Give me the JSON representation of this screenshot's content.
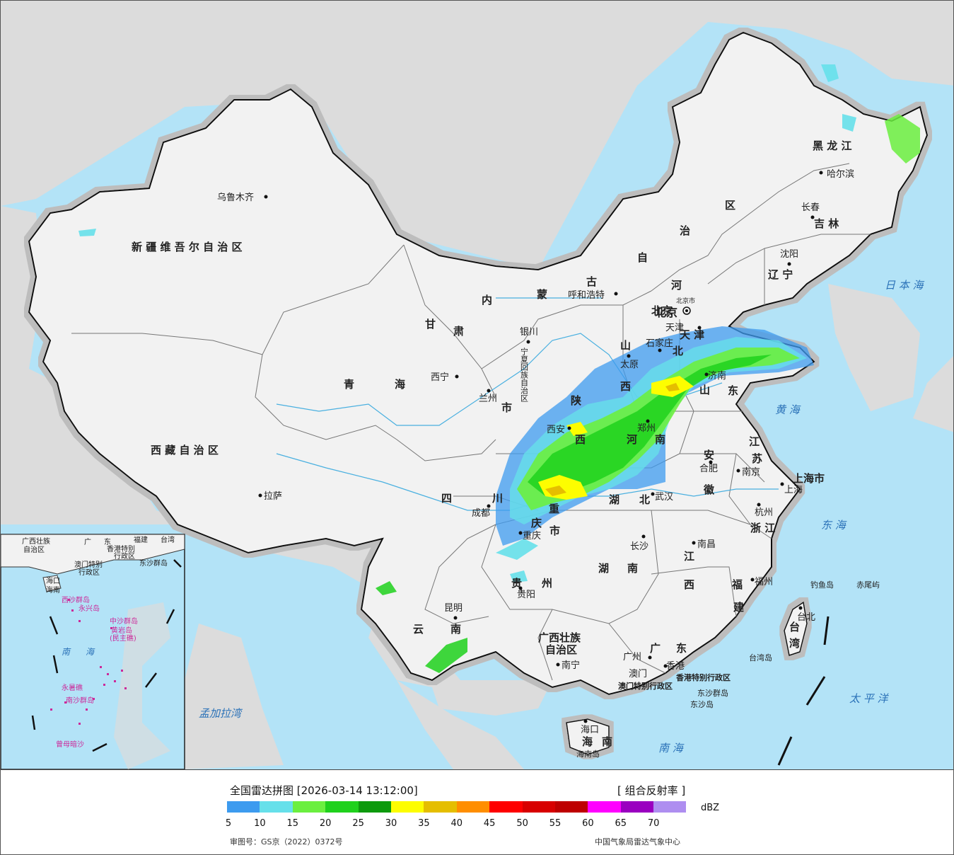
{
  "map": {
    "provinces": [
      "新 疆 维 吾 尔 自 治 区",
      "西 藏 自 治 区",
      "青",
      "海",
      "甘",
      "肃",
      "内",
      "蒙",
      "古",
      "自",
      "治",
      "区",
      "黑 龙 江",
      "吉 林",
      "辽 宁",
      "河",
      "北",
      "山",
      "西",
      "陕",
      "西",
      "河",
      "南",
      "山",
      "东",
      "江",
      "苏",
      "安",
      "徽",
      "浙 江",
      "湖",
      "北",
      "湖",
      "南",
      "江",
      "西",
      "福",
      "建",
      "四",
      "川",
      "重",
      "庆",
      "市",
      "贵",
      "州",
      "云",
      "南",
      "广西壮族",
      "自治区",
      "广",
      "东",
      "海",
      "南",
      "台",
      "湾",
      "上海市",
      "天",
      "津",
      "北京",
      "宁夏回族自治区",
      "市"
    ],
    "cities": [
      "乌鲁木齐",
      "拉萨",
      "西宁",
      "兰州",
      "银川",
      "呼和浩特",
      "北京",
      "天津",
      "石家庄",
      "太原",
      "济南",
      "郑州",
      "西安",
      "成都",
      "重庆",
      "贵阳",
      "昆明",
      "南宁",
      "广州",
      "香港",
      "澳门",
      "长沙",
      "武汉",
      "南昌",
      "合肥",
      "南京",
      "上海",
      "杭州",
      "福州",
      "台北",
      "沈阳",
      "长春",
      "哈尔滨",
      "海口"
    ],
    "seas": [
      "日 本 海",
      "黄 海",
      "东 海",
      "太 平 洋",
      "南 海",
      "孟加拉湾"
    ],
    "islands": [
      "钓鱼岛",
      "赤尾屿",
      "台湾岛",
      "东沙群岛",
      "东沙岛",
      "海南岛",
      "香港特别行政区",
      "澳门特别行政区",
      "北京市"
    ],
    "inset": [
      "广西壮族",
      "自治区",
      "广",
      "东",
      "福建",
      "台湾",
      "香港特别",
      "行政区",
      "澳门特别",
      "行政区",
      "东沙群岛",
      "海口",
      "海南",
      "西沙群岛",
      "永兴岛",
      "中沙群岛",
      "黄岩岛",
      "(民主礁)",
      "南",
      "海",
      "永暑礁",
      "南沙群岛",
      "曾母暗沙"
    ]
  },
  "legend": {
    "title": "全国雷达拼图 [2026-03-14 13:12:00]",
    "product": "[ 组合反射率 ]",
    "unit": "dBZ",
    "ticks": [
      "5",
      "10",
      "15",
      "20",
      "25",
      "30",
      "35",
      "40",
      "45",
      "50",
      "55",
      "60",
      "65",
      "70"
    ],
    "colors": [
      "#3d9bef",
      "#66e0ea",
      "#6bef3f",
      "#1fd11c",
      "#0d9a0d",
      "#fdfd00",
      "#e5be00",
      "#ff8e00",
      "#fe0000",
      "#d80000",
      "#be0000",
      "#ff00ff",
      "#9a00c0",
      "#ae8ef0"
    ],
    "approval": "审图号：GS京（2022）0372号",
    "source": "中国气象局雷达气象中心"
  }
}
